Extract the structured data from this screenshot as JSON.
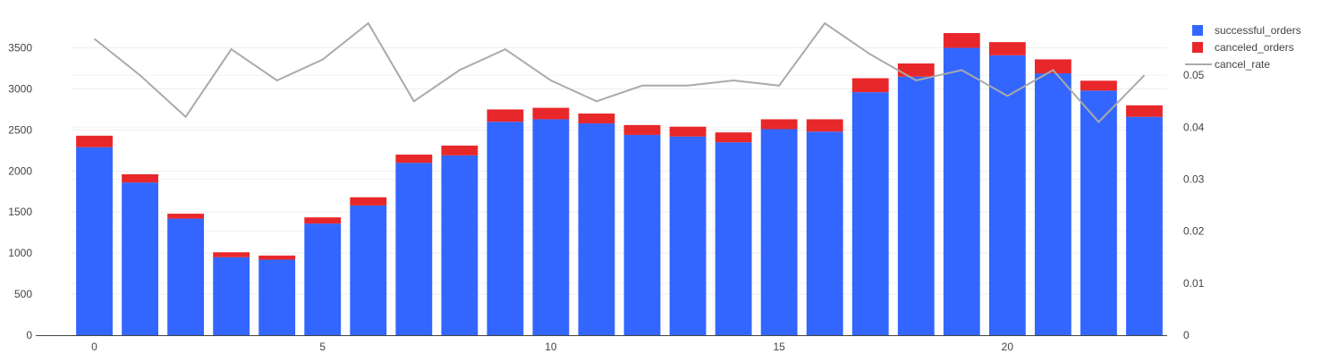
{
  "chart_data": {
    "type": "bar",
    "stacked": true,
    "x": [
      0,
      1,
      2,
      3,
      4,
      5,
      6,
      7,
      8,
      9,
      10,
      11,
      12,
      13,
      14,
      15,
      16,
      17,
      18,
      19,
      20,
      21,
      22,
      23
    ],
    "x_ticks": [
      0,
      5,
      10,
      15,
      20
    ],
    "x_tick_labels": [
      "0",
      "5",
      "10",
      "15",
      "20"
    ],
    "series": [
      {
        "name": "successful_orders",
        "type": "bar",
        "axis": "left",
        "color": "#3366ff",
        "values": [
          2290,
          1860,
          1420,
          950,
          920,
          1360,
          1580,
          2100,
          2190,
          2600,
          2630,
          2580,
          2440,
          2420,
          2350,
          2510,
          2480,
          2960,
          3150,
          3500,
          3410,
          3190,
          2980,
          2660
        ]
      },
      {
        "name": "canceled_orders",
        "type": "bar",
        "axis": "left",
        "color": "#e8272a",
        "values": [
          140,
          100,
          60,
          60,
          50,
          75,
          100,
          100,
          120,
          150,
          140,
          120,
          120,
          120,
          120,
          120,
          150,
          170,
          160,
          180,
          160,
          170,
          120,
          140
        ]
      },
      {
        "name": "cancel_rate",
        "type": "line",
        "axis": "right",
        "color": "#aaaaaa",
        "values": [
          0.057,
          0.05,
          0.042,
          0.055,
          0.049,
          0.053,
          0.06,
          0.045,
          0.051,
          0.055,
          0.049,
          0.045,
          0.048,
          0.048,
          0.049,
          0.048,
          0.06,
          0.054,
          0.049,
          0.051,
          0.046,
          0.051,
          0.041,
          0.05
        ]
      }
    ],
    "y_left": {
      "range": [
        0,
        3800
      ],
      "ticks": [
        0,
        500,
        1000,
        1500,
        2000,
        2500,
        3000,
        3500
      ],
      "tick_labels": [
        "0",
        "500",
        "1000",
        "1500",
        "2000",
        "2500",
        "3000",
        "3500"
      ]
    },
    "y_right": {
      "range": [
        0,
        0.06
      ],
      "ticks": [
        0,
        0.01,
        0.02,
        0.03,
        0.04,
        0.05
      ],
      "tick_labels": [
        "0",
        "0.01",
        "0.02",
        "0.03",
        "0.04",
        "0.05"
      ]
    },
    "grid": true,
    "legend_position": "top-right",
    "title": "",
    "xlabel": "",
    "ylabel": ""
  }
}
